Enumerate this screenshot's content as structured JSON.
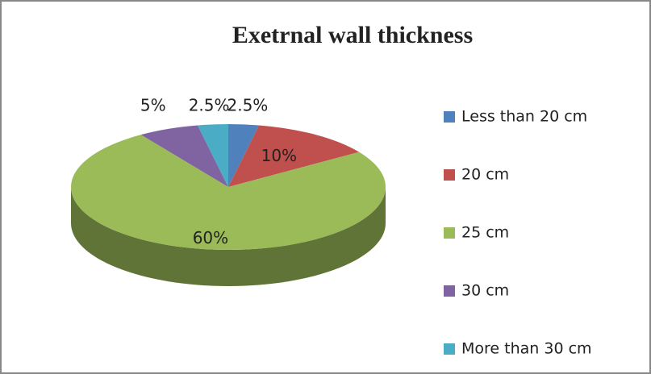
{
  "chart_data": {
    "type": "pie",
    "title": "Exetrnal wall thickness",
    "categories": [
      "Less than 20 cm",
      "20 cm",
      "25 cm",
      "30 cm",
      "More than 30 cm"
    ],
    "values": [
      2.5,
      10,
      60,
      5,
      2.5
    ],
    "value_labels": [
      "2.5%",
      "10%",
      "60%",
      "5%",
      "2.5%"
    ],
    "colors": [
      "#4f81bd",
      "#c0504d",
      "#9bbb59",
      "#8064a2",
      "#4bacc6"
    ],
    "legend": "right",
    "three_d": true
  }
}
